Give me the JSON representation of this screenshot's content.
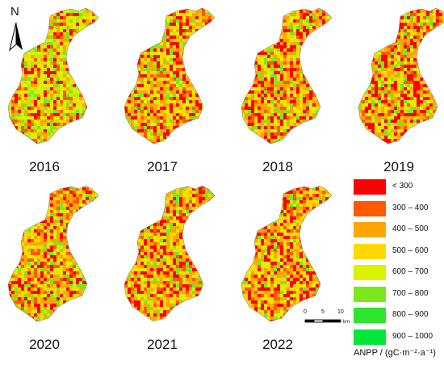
{
  "panels": [
    {
      "year": "2016",
      "palette": "green"
    },
    {
      "year": "2017",
      "palette": "orange"
    },
    {
      "year": "2018",
      "palette": "orange"
    },
    {
      "year": "2019",
      "palette": "orange"
    },
    {
      "year": "2020",
      "palette": "orange"
    },
    {
      "year": "2021",
      "palette": "orange"
    },
    {
      "year": "2022",
      "palette": "orange"
    }
  ],
  "north_arrow": {
    "letter": "N"
  },
  "legend": {
    "title": "ANPP / (gC·m⁻²·a⁻¹)",
    "items": [
      {
        "label": "< 300",
        "color": "#ff0000"
      },
      {
        "label": "300 – 400",
        "color": "#ff5a00"
      },
      {
        "label": "400 – 500",
        "color": "#ffa500"
      },
      {
        "label": "500 – 600",
        "color": "#ffd800"
      },
      {
        "label": "600 – 700",
        "color": "#ddf200"
      },
      {
        "label": "700 – 800",
        "color": "#7be81e"
      },
      {
        "label": "800 – 900",
        "color": "#2ee52e"
      },
      {
        "label": "900 – 1000",
        "color": "#00e63a"
      }
    ]
  },
  "scalebar": {
    "ticks": [
      "0",
      "5",
      "10"
    ],
    "unit": "km"
  }
}
